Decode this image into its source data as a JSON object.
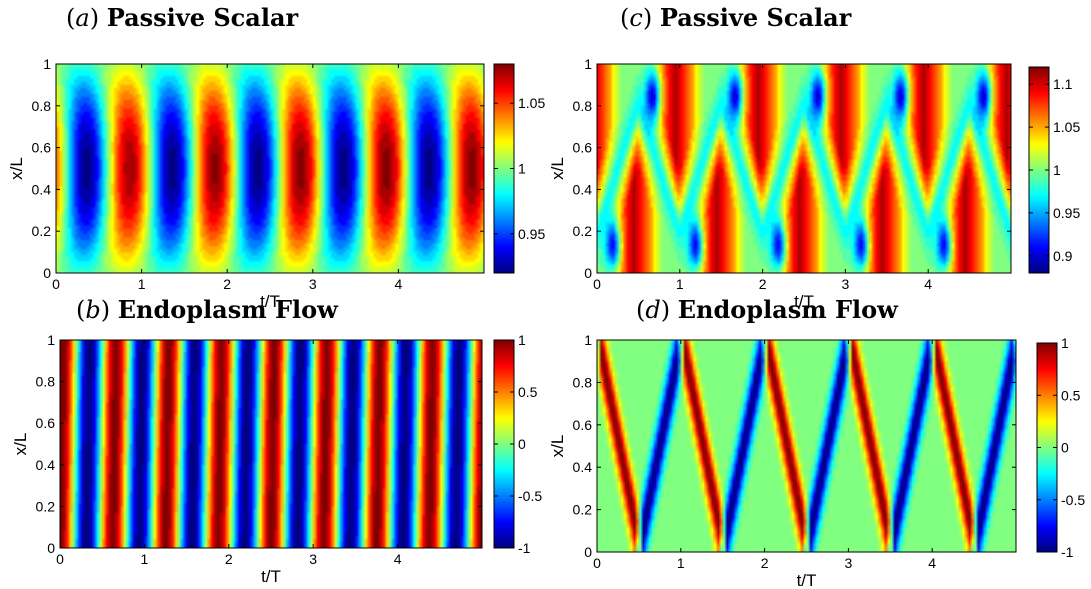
{
  "chart_data": [
    {
      "type": "heatmap",
      "panel_letter": "a",
      "title": "Passive Scalar",
      "xlabel": "t/T",
      "ylabel": "x/L",
      "xlim": [
        0,
        5
      ],
      "ylim": [
        0,
        1
      ],
      "x_ticks": [
        "0",
        "1",
        "2",
        "3",
        "4"
      ],
      "y_ticks": [
        "0",
        "0.2",
        "0.4",
        "0.6",
        "0.8",
        "1"
      ],
      "colorbar": {
        "min": 0.92,
        "max": 1.08,
        "ticks": [
          "0.95",
          "1",
          "1.05"
        ],
        "tick_values": [
          0.95,
          1.0,
          1.05
        ]
      },
      "pattern": {
        "kind": "scalar_standing",
        "period": 1.0,
        "t_min_first": 0.3,
        "dt_max": 0.5,
        "min_value": 0.92,
        "max_value": 1.08,
        "amplitude_growth": 0.25
      },
      "colormap": "jet"
    },
    {
      "type": "heatmap",
      "panel_letter": "b",
      "title": "Endoplasm Flow",
      "xlabel": "t/T",
      "ylabel": "x/L",
      "xlim": [
        0,
        5
      ],
      "ylim": [
        0,
        1
      ],
      "x_ticks": [
        "0",
        "1",
        "2",
        "3",
        "4"
      ],
      "y_ticks": [
        "0",
        "0.2",
        "0.4",
        "0.6",
        "0.8",
        "1"
      ],
      "colorbar": {
        "min": -1,
        "max": 1,
        "ticks": [
          "-1",
          "-0.5",
          "0",
          "0.5",
          "1"
        ],
        "tick_values": [
          -1,
          -0.5,
          0,
          0.5,
          1
        ]
      },
      "pattern": {
        "kind": "flow_traveling",
        "period": 0.625,
        "t_max_first": 0.0,
        "slant": 0.04
      },
      "colormap": "jet"
    },
    {
      "type": "heatmap",
      "panel_letter": "c",
      "title": "Passive Scalar",
      "xlabel": "t/T",
      "ylabel": "x/L",
      "xlim": [
        0,
        5
      ],
      "ylim": [
        0,
        1
      ],
      "x_ticks": [
        "0",
        "1",
        "2",
        "3",
        "4"
      ],
      "y_ticks": [
        "0",
        "0.2",
        "0.4",
        "0.6",
        "0.8",
        "1"
      ],
      "colorbar": {
        "min": 0.88,
        "max": 1.12,
        "ticks": [
          "0.9",
          "0.95",
          "1",
          "1.05",
          "1.1"
        ],
        "tick_values": [
          0.9,
          0.95,
          1.0,
          1.05,
          1.1
        ]
      },
      "pattern": {
        "kind": "scalar_zigzag",
        "period": 1.0,
        "min_value": 0.88,
        "max_value": 1.12
      },
      "colormap": "jet"
    },
    {
      "type": "heatmap",
      "panel_letter": "d",
      "title": "Endoplasm Flow",
      "xlabel": "t/T",
      "ylabel": "x/L",
      "xlim": [
        0,
        5
      ],
      "ylim": [
        0,
        1
      ],
      "x_ticks": [
        "0",
        "1",
        "2",
        "3",
        "4"
      ],
      "y_ticks": [
        "0",
        "0.2",
        "0.4",
        "0.6",
        "0.8",
        "1"
      ],
      "colorbar": {
        "min": -1,
        "max": 1,
        "ticks": [
          "-1",
          "-0.5",
          "0",
          "0.5",
          "1"
        ],
        "tick_values": [
          -1,
          -0.5,
          0,
          0.5,
          1
        ]
      },
      "pattern": {
        "kind": "flow_zigzag",
        "period": 1.0
      },
      "colormap": "jet"
    }
  ]
}
